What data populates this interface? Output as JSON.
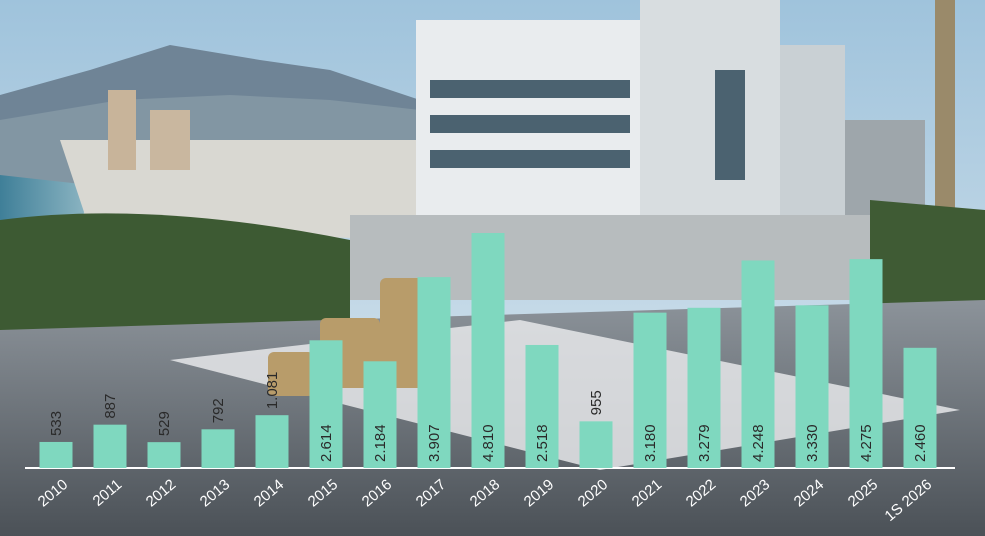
{
  "chart_data": {
    "type": "bar",
    "categories": [
      "2010",
      "2011",
      "2012",
      "2013",
      "2014",
      "2015",
      "2016",
      "2017",
      "2018",
      "2019",
      "2020",
      "2021",
      "2022",
      "2023",
      "2024",
      "2025",
      "1S 2026"
    ],
    "values": [
      533,
      887,
      529,
      792,
      1081,
      2614,
      2184,
      3907,
      4810,
      2518,
      955,
      3180,
      3279,
      4248,
      3330,
      4275,
      2460
    ],
    "value_labels": [
      "533",
      "887",
      "529",
      "792",
      "1.081",
      "2.614",
      "2.184",
      "3.907",
      "4.810",
      "2.518",
      "955",
      "3.180",
      "3.279",
      "4.248",
      "3.330",
      "4.275",
      "2.460"
    ],
    "color": "#7fd8bf"
  }
}
